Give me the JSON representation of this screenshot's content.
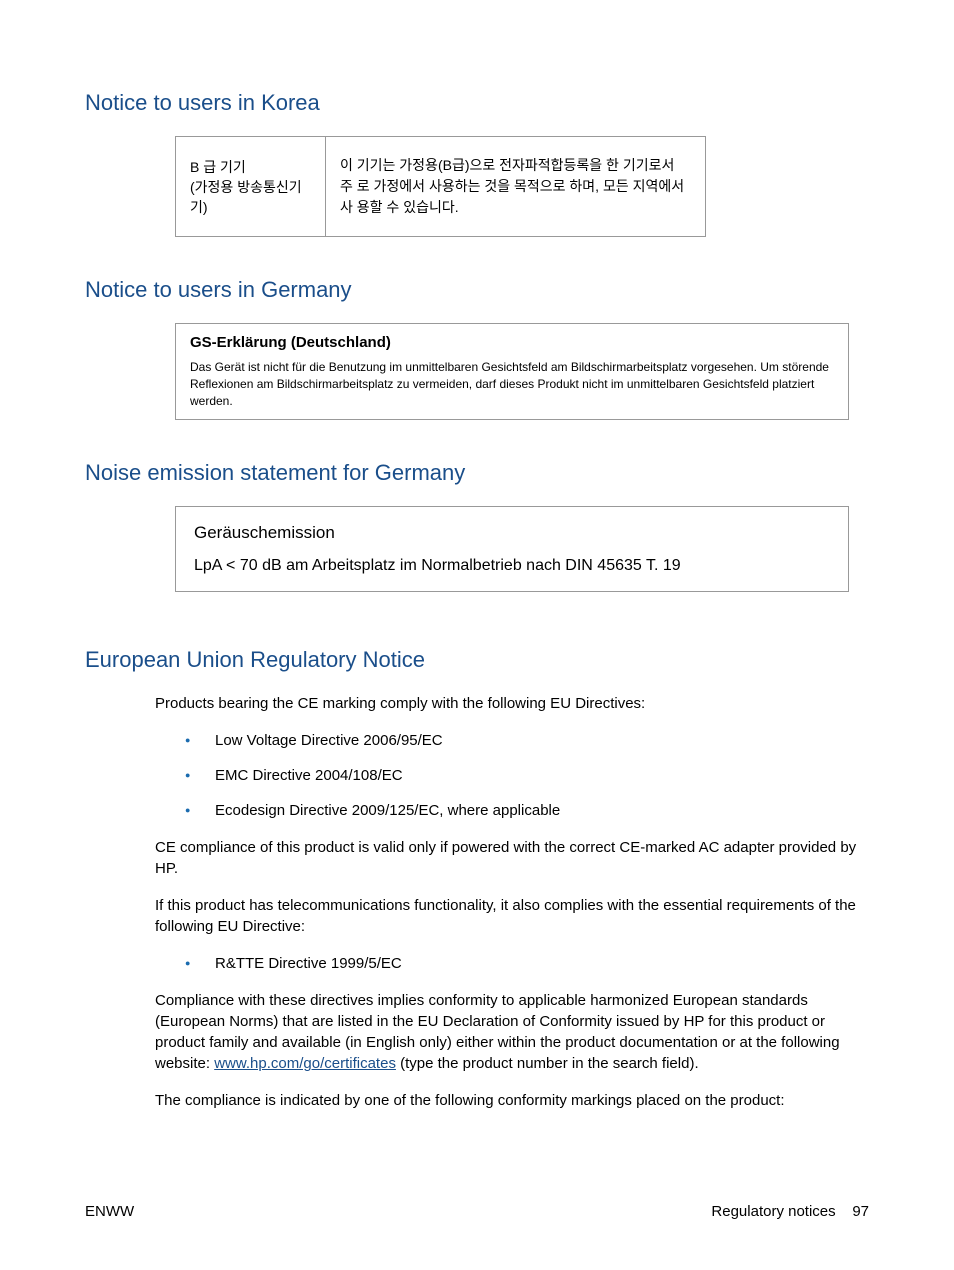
{
  "headings": {
    "korea": "Notice to users in Korea",
    "germany": "Notice to users in Germany",
    "noise": "Noise emission statement for Germany",
    "eu": "European Union Regulatory Notice"
  },
  "korea_table": {
    "left_line1": "B 급 기기",
    "left_line2": "(가정용 방송통신기기)",
    "right": "이 기기는 가정용(B급)으로 전자파적합등록을 한 기기로서 주 로 가정에서 사용하는 것을 목적으로 하며, 모든 지역에서 사 용할 수 있습니다."
  },
  "germany_box": {
    "title": "GS-Erklärung (Deutschland)",
    "text": "Das Gerät ist nicht für die Benutzung im unmittelbaren Gesichtsfeld am Bildschirmarbeitsplatz vorgesehen. Um störende Reflexionen am Bildschirmarbeitsplatz zu vermeiden, darf dieses Produkt nicht im unmittelbaren Gesichtsfeld platziert werden."
  },
  "noise_box": {
    "title": "Geräuschemission",
    "text": "LpA < 70 dB am Arbeitsplatz im Normalbetrieb nach DIN 45635 T. 19"
  },
  "eu": {
    "intro": "Products bearing the CE marking comply with the following EU Directives:",
    "bullets1": [
      "Low Voltage Directive 2006/95/EC",
      "EMC Directive 2004/108/EC",
      "Ecodesign Directive 2009/125/EC, where applicable"
    ],
    "p2": "CE compliance of this product is valid only if powered with the correct CE-marked AC adapter provided by HP.",
    "p3": "If this product has telecommunications functionality, it also complies with the essential requirements of the following EU Directive:",
    "bullets2": [
      "R&TTE Directive 1999/5/EC"
    ],
    "p4_before": "Compliance with these directives implies conformity to applicable harmonized European standards (European Norms) that are listed in the EU Declaration of Conformity issued by HP for this product or product family and available (in English only) either within the product documentation or at the following website: ",
    "p4_link": "www.hp.com/go/certificates",
    "p4_after": " (type the product number in the search field).",
    "p5": "The compliance is indicated by one of the following conformity markings placed on the product:"
  },
  "footer": {
    "left": "ENWW",
    "right_label": "Regulatory notices",
    "page": "97"
  },
  "colors": {
    "heading": "#1a4e8a",
    "bullet": "#1a6baf",
    "text": "#000000",
    "border": "#999999",
    "background": "#ffffff"
  },
  "typography": {
    "heading_fontsize": 22,
    "body_fontsize": 15,
    "small_fontsize": 12,
    "font_family": "Arial"
  }
}
